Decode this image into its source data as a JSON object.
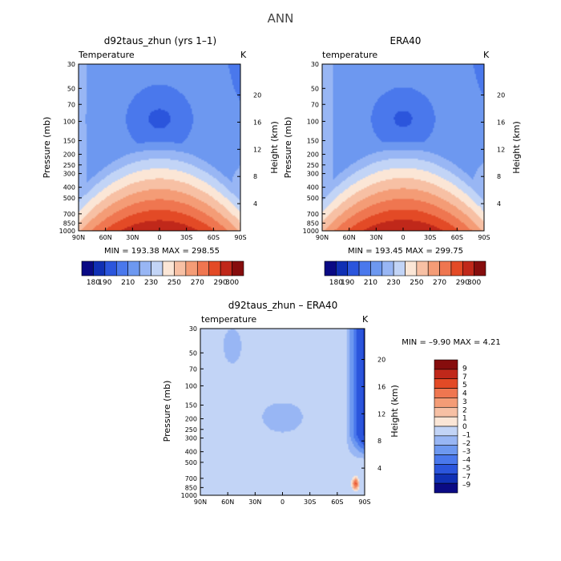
{
  "chart_data": [
    {
      "type": "heatmap",
      "suptitle": "ANN",
      "title": "d92taus_zhun (yrs 1–1)",
      "variable_label": "Temperature",
      "units": "K",
      "ylabel": "Pressure (mb)",
      "ylabel_right": "Height (km)",
      "x_ticks": [
        "90N",
        "60N",
        "30N",
        "0",
        "30S",
        "60S",
        "90S"
      ],
      "x_range": [
        90,
        -90
      ],
      "y_ticks": [
        30,
        50,
        70,
        100,
        150,
        200,
        250,
        300,
        400,
        500,
        700,
        850,
        1000
      ],
      "y_range": [
        1000,
        30
      ],
      "height_ticks": [
        4,
        8,
        12,
        16,
        20
      ],
      "min_max_text": "MIN = 193.38   MAX = 298.55",
      "min": 193.38,
      "max": 298.55,
      "colorbar_labels": [
        "180",
        "190",
        "210",
        "230",
        "250",
        "270",
        "290",
        "300"
      ],
      "levels": [
        180,
        185,
        190,
        200,
        210,
        220,
        230,
        240,
        250,
        260,
        270,
        280,
        290,
        300
      ]
    },
    {
      "type": "heatmap",
      "title": "ERA40",
      "variable_label": "temperature",
      "units": "K",
      "ylabel": "Pressure (mb)",
      "ylabel_right": "Height (km)",
      "x_ticks": [
        "90N",
        "60N",
        "30N",
        "0",
        "30S",
        "60S",
        "90S"
      ],
      "x_range": [
        90,
        -90
      ],
      "y_ticks": [
        30,
        50,
        70,
        100,
        150,
        200,
        250,
        300,
        400,
        500,
        700,
        850,
        1000
      ],
      "y_range": [
        1000,
        30
      ],
      "height_ticks": [
        4,
        8,
        12,
        16,
        20
      ],
      "min_max_text": "MIN = 193.45   MAX = 299.75",
      "min": 193.45,
      "max": 299.75,
      "colorbar_labels": [
        "180",
        "190",
        "210",
        "230",
        "250",
        "270",
        "290",
        "300"
      ],
      "levels": [
        180,
        185,
        190,
        200,
        210,
        220,
        230,
        240,
        250,
        260,
        270,
        280,
        290,
        300
      ]
    },
    {
      "type": "heatmap",
      "title": "d92taus_zhun – ERA40",
      "variable_label": "temperature",
      "units": "K",
      "ylabel": "Pressure (mb)",
      "ylabel_right": "Height (km)",
      "x_ticks": [
        "90N",
        "60N",
        "30N",
        "0",
        "30S",
        "60S",
        "90S"
      ],
      "x_range": [
        90,
        -90
      ],
      "y_ticks": [
        30,
        50,
        70,
        100,
        150,
        200,
        250,
        300,
        400,
        500,
        700,
        850,
        1000
      ],
      "y_range": [
        1000,
        30
      ],
      "height_ticks": [
        4,
        8,
        12,
        16,
        20
      ],
      "min_max_text": "MIN =  –9.90   MAX =    4.21",
      "min": -9.9,
      "max": 4.21,
      "colorbar_labels": [
        "9",
        "7",
        "5",
        "4",
        "3",
        "2",
        "1",
        "0",
        "–1",
        "–2",
        "–3",
        "–4",
        "–5",
        "–7",
        "–9"
      ]
    }
  ],
  "colors": {
    "abs_scale": [
      "#0a0a84",
      "#1030b4",
      "#2b55dc",
      "#4a78ec",
      "#6d98f0",
      "#98b6f4",
      "#c2d4f6",
      "#fbe6d6",
      "#f7c0a4",
      "#f49c76",
      "#ef7650",
      "#e34a26",
      "#c0281a",
      "#860d0d"
    ],
    "diff_pos": [
      "#fbe6d6",
      "#f7c0a4",
      "#f49c76",
      "#ef7650",
      "#e34a26",
      "#c0281a",
      "#860d0d"
    ],
    "diff_neg": [
      "#c2d4f6",
      "#98b6f4",
      "#6d98f0",
      "#4a78ec",
      "#2b55dc",
      "#1030b4",
      "#0a0a84"
    ]
  }
}
